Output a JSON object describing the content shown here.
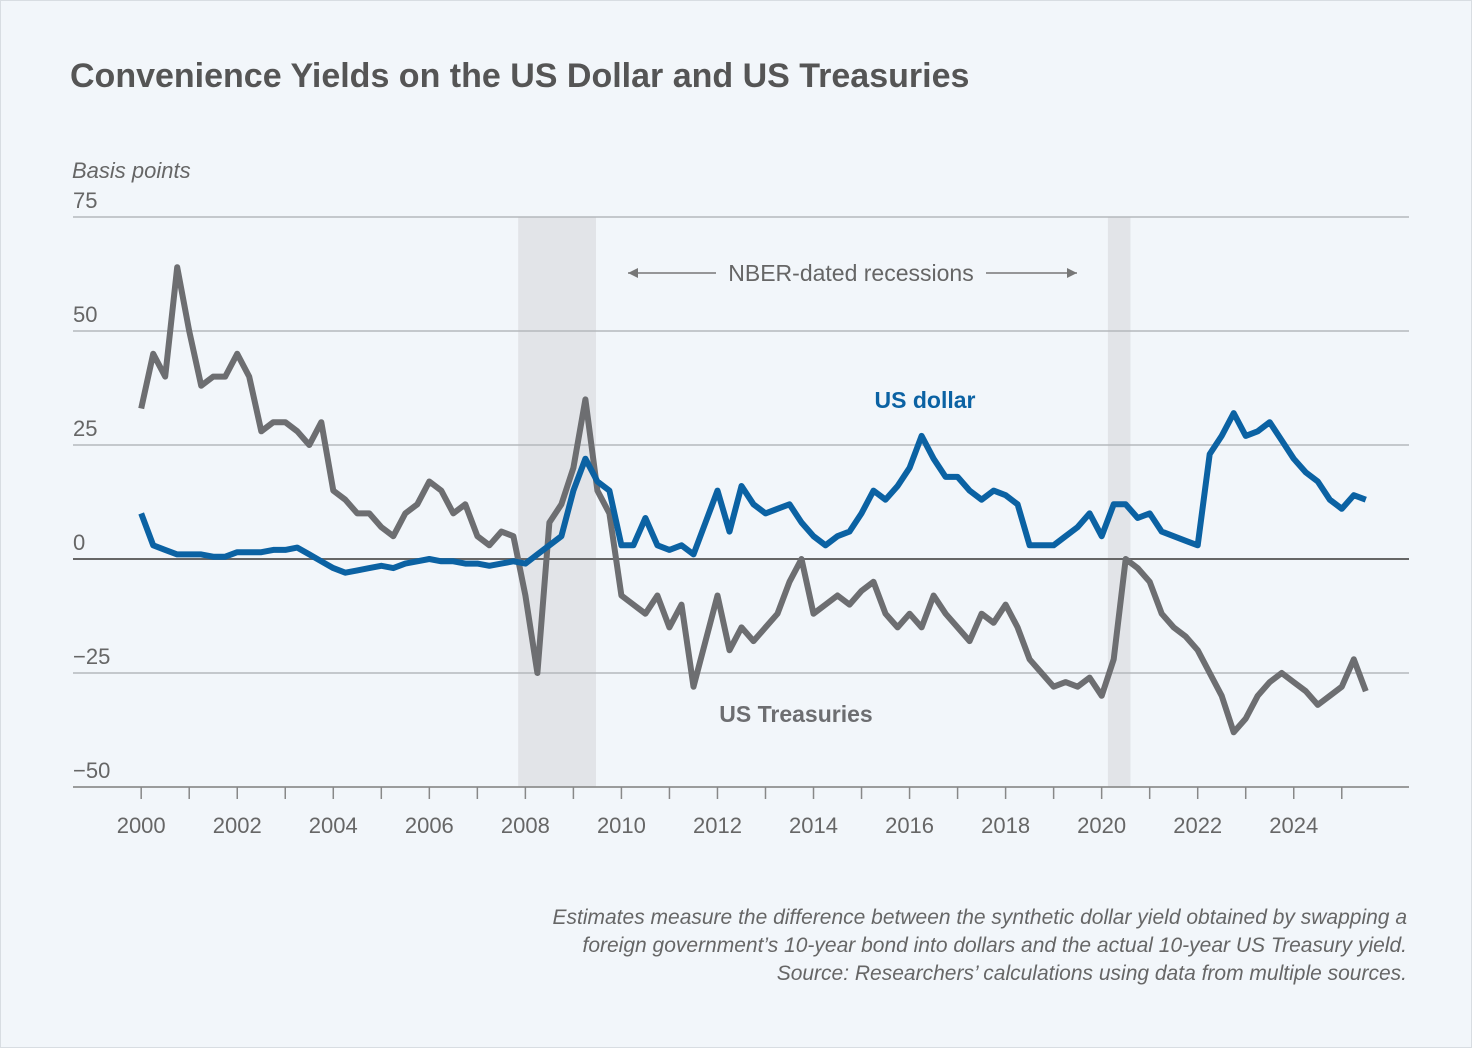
{
  "chart_data": {
    "type": "line",
    "title": "Convenience Yields on the US Dollar and US Treasuries",
    "y_label": "Basis points",
    "annotation": "NBER-dated recessions",
    "recessions": [
      [
        2007.85,
        2009.47
      ],
      [
        2020.13,
        2020.6
      ]
    ],
    "notes": [
      "Estimates measure the difference between the synthetic dollar yield obtained by swapping a",
      "foreign government’s 10-year bond into dollars and the actual 10-year US Treasury yield.",
      "Source: Researchers’ calculations using data from multiple sources."
    ],
    "xlim": [
      1998.58,
      2026.4
    ],
    "xticks": [
      2000,
      2002,
      2004,
      2006,
      2008,
      2010,
      2012,
      2014,
      2016,
      2018,
      2020,
      2022,
      2024
    ],
    "xminorticks": [
      2001,
      2003,
      2005,
      2007,
      2009,
      2011,
      2013,
      2015,
      2017,
      2019,
      2021,
      2023,
      2025
    ],
    "ylim": [
      -50,
      75
    ],
    "yticks": [
      {
        "value": -50,
        "label": "−50"
      },
      {
        "value": -25,
        "label": "−25"
      },
      0,
      25,
      50,
      75
    ],
    "grid": true,
    "x": [
      2000,
      2000.25,
      2000.5,
      2000.75,
      2001,
      2001.25,
      2001.5,
      2001.75,
      2002,
      2002.25,
      2002.5,
      2002.75,
      2003,
      2003.25,
      2003.5,
      2003.75,
      2004,
      2004.25,
      2004.5,
      2004.75,
      2005,
      2005.25,
      2005.5,
      2005.75,
      2006,
      2006.25,
      2006.5,
      2006.75,
      2007,
      2007.25,
      2007.5,
      2007.75,
      2008,
      2008.25,
      2008.5,
      2008.75,
      2009,
      2009.25,
      2009.5,
      2009.75,
      2010,
      2010.25,
      2010.5,
      2010.75,
      2011,
      2011.25,
      2011.5,
      2011.75,
      2012,
      2012.25,
      2012.5,
      2012.75,
      2013,
      2013.25,
      2013.5,
      2013.75,
      2014,
      2014.25,
      2014.5,
      2014.75,
      2015,
      2015.25,
      2015.5,
      2015.75,
      2016,
      2016.25,
      2016.5,
      2016.75,
      2017,
      2017.25,
      2017.5,
      2017.75,
      2018,
      2018.25,
      2018.5,
      2018.75,
      2019,
      2019.25,
      2019.5,
      2019.75,
      2020,
      2020.25,
      2020.5,
      2020.75,
      2021,
      2021.25,
      2021.5,
      2021.75,
      2022,
      2022.25,
      2022.5,
      2022.75,
      2023,
      2023.25,
      2023.5,
      2023.75,
      2024,
      2024.25,
      2024.5,
      2024.75,
      2025,
      2025.25,
      2025.5
    ],
    "series": [
      {
        "name": "US dollar",
        "color": "#0b62a3",
        "values": [
          10,
          3,
          2,
          1,
          1,
          1,
          0.5,
          0.5,
          1.5,
          1.5,
          1.5,
          2,
          2,
          2.5,
          1,
          -0.5,
          -2,
          -3,
          -2.5,
          -2,
          -1.5,
          -2,
          -1,
          -0.5,
          0,
          -0.5,
          -0.5,
          -1,
          -1,
          -1.5,
          -1,
          -0.5,
          -1,
          1,
          3,
          5,
          15,
          22,
          17,
          15,
          3,
          3,
          9,
          3,
          2,
          3,
          1,
          8,
          15,
          6,
          16,
          12,
          10,
          11,
          12,
          8,
          5,
          3,
          5,
          6,
          10,
          15,
          13,
          16,
          20,
          27,
          22,
          18,
          18,
          15,
          13,
          15,
          14,
          12,
          3,
          3,
          3,
          5,
          7,
          10,
          5,
          12,
          12,
          9,
          10,
          6,
          5,
          4,
          3,
          23,
          27,
          32,
          27,
          28,
          30,
          26,
          22,
          19,
          17,
          13,
          11,
          14,
          13
        ]
      },
      {
        "name": "US Treasuries",
        "color": "#6d6e71",
        "values": [
          33,
          45,
          40,
          64,
          50,
          38,
          40,
          40,
          45,
          40,
          28,
          30,
          30,
          28,
          25,
          30,
          15,
          13,
          10,
          10,
          7,
          5,
          10,
          12,
          17,
          15,
          10,
          12,
          5,
          3,
          6,
          5,
          -8,
          -25,
          8,
          12,
          20,
          35,
          15,
          10,
          -8,
          -10,
          -12,
          -8,
          -15,
          -10,
          -28,
          -18,
          -8,
          -20,
          -15,
          -18,
          -15,
          -12,
          -5,
          0,
          -12,
          -10,
          -8,
          -10,
          -7,
          -5,
          -12,
          -15,
          -12,
          -15,
          -8,
          -12,
          -15,
          -18,
          -12,
          -14,
          -10,
          -15,
          -22,
          -25,
          -28,
          -27,
          -28,
          -26,
          -30,
          -22,
          0,
          -2,
          -5,
          -12,
          -15,
          -17,
          -20,
          -25,
          -30,
          -38,
          -35,
          -30,
          -27,
          -25,
          -27,
          -29,
          -32,
          -30,
          -28,
          -22,
          -29
        ]
      }
    ]
  }
}
